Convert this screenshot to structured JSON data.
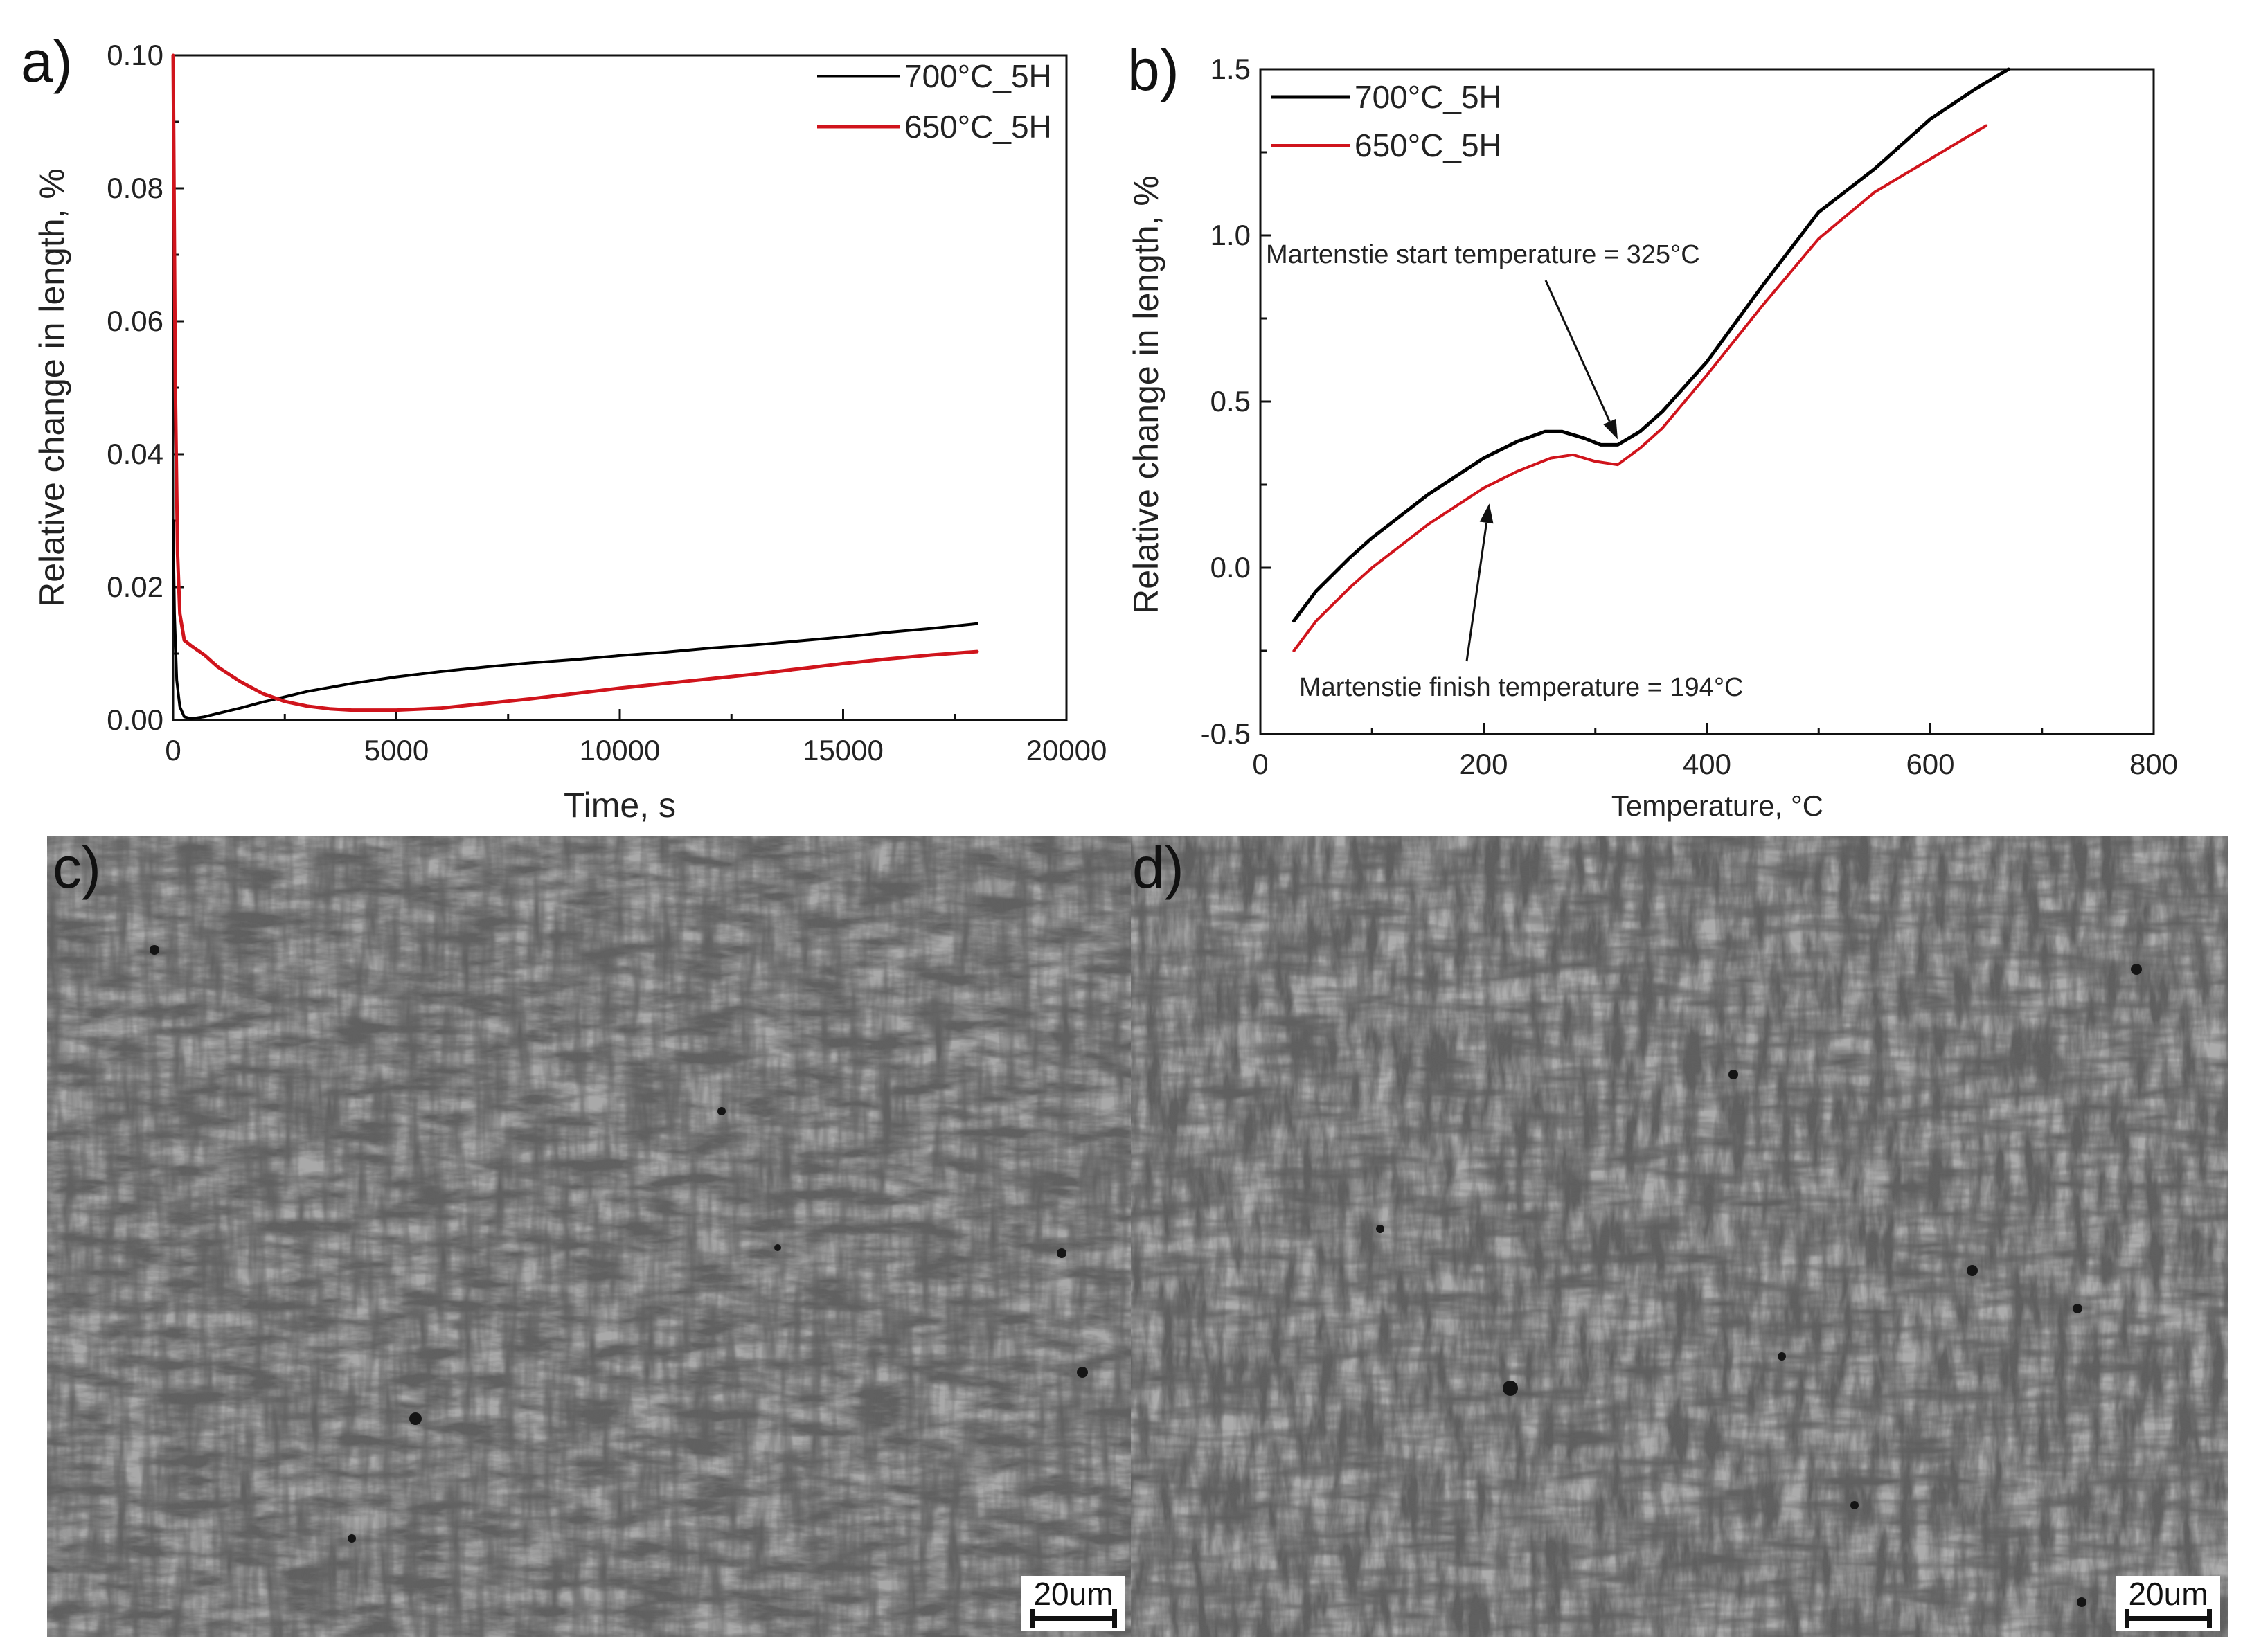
{
  "figure": {
    "panels": {
      "a": {
        "letter": "a)"
      },
      "b": {
        "letter": "b)"
      },
      "c": {
        "letter": "c)",
        "scale_bar": "20um"
      },
      "d": {
        "letter": "d)",
        "scale_bar": "20um"
      }
    }
  },
  "chart_data": [
    {
      "panel": "a",
      "type": "line",
      "xlabel": "Time, s",
      "ylabel": "Relative change in length, %",
      "xlim": [
        0,
        20000
      ],
      "ylim": [
        0.0,
        0.1
      ],
      "xticks": [
        "0",
        "5000",
        "10000",
        "15000",
        "20000"
      ],
      "yticks": [
        "0.00",
        "0.02",
        "0.04",
        "0.06",
        "0.08",
        "0.10"
      ],
      "legend_position": "top-right",
      "series": [
        {
          "name": "700°C_5H",
          "color": "#000000",
          "x": [
            0,
            30,
            80,
            150,
            250,
            400,
            700,
            1000,
            1500,
            2000,
            2500,
            3000,
            4000,
            5000,
            6000,
            7000,
            8000,
            9000,
            10000,
            11000,
            12000,
            13000,
            14000,
            15000,
            16000,
            17000,
            18000
          ],
          "y": [
            0.03,
            0.016,
            0.006,
            0.002,
            0.0005,
            0.0002,
            0.0005,
            0.001,
            0.0018,
            0.0027,
            0.0035,
            0.0043,
            0.0055,
            0.0065,
            0.0073,
            0.008,
            0.0086,
            0.0091,
            0.0097,
            0.0102,
            0.0108,
            0.0113,
            0.0119,
            0.0125,
            0.0132,
            0.0138,
            0.0145
          ]
        },
        {
          "name": "650°C_5H",
          "color": "#d0141c",
          "x": [
            0,
            20,
            50,
            100,
            150,
            250,
            400,
            700,
            1000,
            1500,
            2000,
            2500,
            3000,
            3500,
            4000,
            4500,
            5000,
            6000,
            7000,
            8000,
            9000,
            10000,
            11000,
            12000,
            13000,
            14000,
            15000,
            16000,
            17000,
            18000
          ],
          "y": [
            0.1,
            0.08,
            0.05,
            0.025,
            0.016,
            0.012,
            0.0112,
            0.0098,
            0.008,
            0.0058,
            0.004,
            0.0028,
            0.0021,
            0.0017,
            0.0015,
            0.0015,
            0.0015,
            0.0018,
            0.0025,
            0.0032,
            0.004,
            0.0048,
            0.0055,
            0.0062,
            0.0069,
            0.0077,
            0.0085,
            0.0092,
            0.0098,
            0.0103
          ]
        }
      ]
    },
    {
      "panel": "b",
      "type": "line",
      "xlabel": "Temperature, °C",
      "ylabel": "Relative change in length, %",
      "xlim": [
        0,
        800
      ],
      "ylim": [
        -0.5,
        1.5
      ],
      "xticks": [
        "0",
        "200",
        "400",
        "600",
        "800"
      ],
      "yticks": [
        "-0.5",
        "0.0",
        "0.5",
        "1.0",
        "1.5"
      ],
      "legend_position": "top-left",
      "series": [
        {
          "name": "700°C_5H",
          "color": "#000000",
          "x": [
            30,
            50,
            80,
            100,
            150,
            200,
            230,
            255,
            270,
            290,
            305,
            320,
            340,
            360,
            400,
            450,
            500,
            550,
            600,
            640,
            670
          ],
          "y": [
            -0.16,
            -0.07,
            0.03,
            0.09,
            0.22,
            0.33,
            0.38,
            0.41,
            0.41,
            0.39,
            0.37,
            0.37,
            0.41,
            0.47,
            0.62,
            0.85,
            1.07,
            1.2,
            1.35,
            1.44,
            1.5
          ]
        },
        {
          "name": "650°C_5H",
          "color": "#d0141c",
          "x": [
            30,
            50,
            80,
            100,
            150,
            200,
            230,
            260,
            280,
            300,
            320,
            340,
            360,
            400,
            450,
            500,
            550,
            600,
            650
          ],
          "y": [
            -0.25,
            -0.16,
            -0.06,
            0.0,
            0.13,
            0.24,
            0.29,
            0.33,
            0.34,
            0.32,
            0.31,
            0.36,
            0.42,
            0.58,
            0.79,
            0.99,
            1.13,
            1.23,
            1.33
          ]
        }
      ],
      "annotations": [
        {
          "text": "Martenstie start temperature = 325°C",
          "x": 320,
          "y": 0.37
        },
        {
          "text": "Martenstie finish temperature = 194°C",
          "x": 205,
          "y": 0.21
        }
      ]
    }
  ]
}
